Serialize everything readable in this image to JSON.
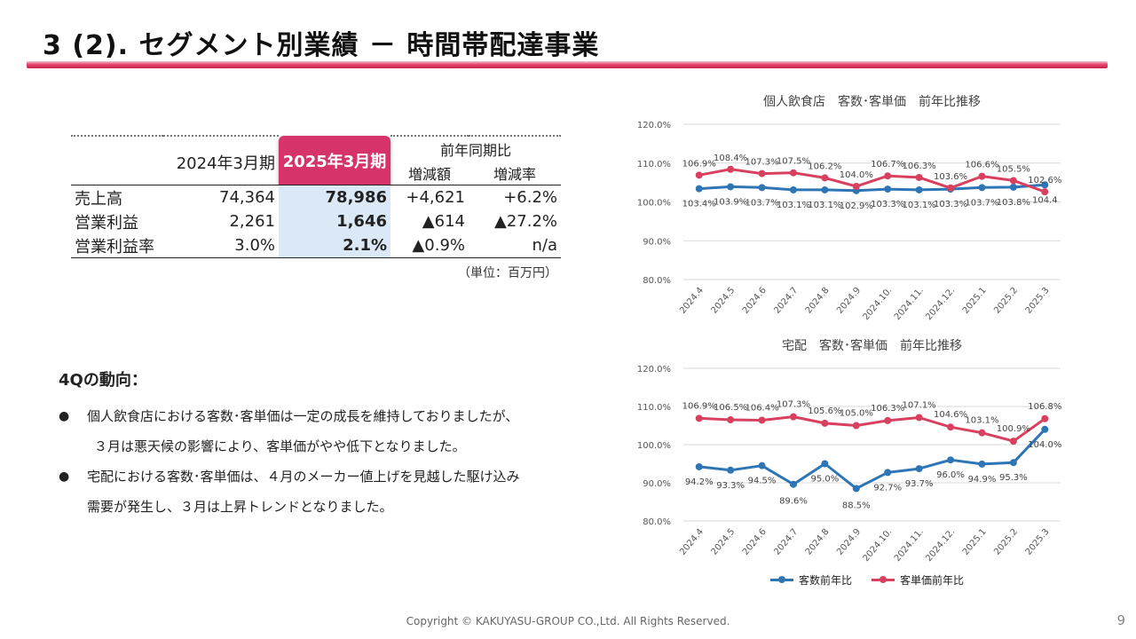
{
  "slide": {
    "title": "3 (2).  セグメント別業績  －  時間帯配達事業",
    "footer": "Copyright © KAKUYASU-GROUP CO.,Ltd. All Rights Reserved.",
    "page_number": "9"
  },
  "kpi_table": {
    "col_prev": "2024年3月期",
    "col_curr": "2025年3月期",
    "col_yoy": "前年同期比",
    "col_diff": "増減額",
    "col_rate": "増減率",
    "rows": [
      {
        "label": "売上高",
        "prev": "74,364",
        "curr": "78,986",
        "diff": "+4,621",
        "rate": "+6.2%"
      },
      {
        "label": "営業利益",
        "prev": "2,261",
        "curr": "1,646",
        "diff": "▲614",
        "rate": "▲27.2%"
      },
      {
        "label": "営業利益率",
        "prev": "3.0%",
        "curr": "2.1%",
        "diff": "▲0.9%",
        "rate": "n/a"
      }
    ],
    "unit": "（単位：百万円）"
  },
  "notes": {
    "heading": "4Qの動向：",
    "bullet": "●",
    "items": [
      {
        "line1": "個人飲食店における客数･客単価は一定の成長を維持しておりましたが、",
        "line2": "３月は悪天候の影響により、客単価がやや低下となりました。"
      },
      {
        "line1": "宅配における客数･客単価は、４月のメーカー値上げを見越した駆け込み",
        "line2": "需要が発生し、３月は上昇トレンドとなりました。"
      }
    ]
  },
  "legend": {
    "customers": "客数前年比",
    "price": "客単価前年比"
  },
  "colors": {
    "accent": "#d6336a",
    "customers": "#2e75b6",
    "price": "#d9405f",
    "highlight": "#dbe9f6",
    "grid": "#d9d9d9"
  },
  "chart_data": [
    {
      "type": "line",
      "title": "個人飲食店　客数･客単価　前年比推移",
      "categories": [
        "2024.4",
        "2024.5",
        "2024.6",
        "2024.7",
        "2024.8",
        "2024.9",
        "2024.10.",
        "2024.11.",
        "2024.12.",
        "2025.1",
        "2025.2",
        "2025.3"
      ],
      "y_ticks": [
        "120.0%",
        "110.0%",
        "100.0%",
        "90.0%",
        "80.0%"
      ],
      "ylim": [
        80,
        120
      ],
      "grid": true,
      "legend": "bottom",
      "series": [
        {
          "name": "客数前年比",
          "values": [
            103.4,
            103.9,
            103.7,
            103.1,
            103.1,
            102.9,
            103.3,
            103.1,
            103.3,
            103.7,
            103.8,
            104.4
          ],
          "labels": [
            "103.4%",
            "103.9%",
            "103.7%",
            "103.1%",
            "103.1%",
            "102.9%",
            "103.3%",
            "103.1%",
            "103.3%",
            "103.7%",
            "103.8%",
            "104.4"
          ]
        },
        {
          "name": "客単価前年比",
          "values": [
            106.9,
            108.4,
            107.3,
            107.5,
            106.2,
            104.0,
            106.7,
            106.3,
            103.6,
            106.6,
            105.5,
            102.6
          ],
          "labels": [
            "106.9%",
            "108.4%",
            "107.3%",
            "107.5%",
            "106.2%",
            "104.0%",
            "106.7%",
            "106.3%",
            "103.6%",
            "106.6%",
            "105.5%",
            "102.6%"
          ]
        }
      ]
    },
    {
      "type": "line",
      "title": "宅配　客数･客単価　前年比推移",
      "categories": [
        "2024.4",
        "2024.5",
        "2024.6",
        "2024.7",
        "2024.8",
        "2024.9",
        "2024.10.",
        "2024.11.",
        "2024.12.",
        "2025.1",
        "2025.2",
        "2025.3"
      ],
      "y_ticks": [
        "120.0%",
        "110.0%",
        "100.0%",
        "90.0%",
        "80.0%"
      ],
      "ylim": [
        80,
        120
      ],
      "grid": true,
      "legend": "bottom",
      "series": [
        {
          "name": "客数前年比",
          "values": [
            94.2,
            93.3,
            94.5,
            89.6,
            95.0,
            88.5,
            92.7,
            93.7,
            96.0,
            94.9,
            95.3,
            104.0
          ],
          "labels": [
            "94.2%",
            "93.3%",
            "94.5%",
            "89.6%",
            "95.0%",
            "88.5%",
            "92.7%",
            "93.7%",
            "96.0%",
            "94.9%",
            "95.3%",
            "104.0%"
          ]
        },
        {
          "name": "客単価前年比",
          "values": [
            106.9,
            106.5,
            106.4,
            107.3,
            105.6,
            105.0,
            106.3,
            107.1,
            104.6,
            103.1,
            100.9,
            106.8
          ],
          "labels": [
            "106.9%",
            "106.5%",
            "106.4%",
            "107.3%",
            "105.6%",
            "105.0%",
            "106.3%",
            "107.1%",
            "104.6%",
            "103.1%",
            "100.9%",
            "106.8%"
          ]
        }
      ]
    }
  ]
}
